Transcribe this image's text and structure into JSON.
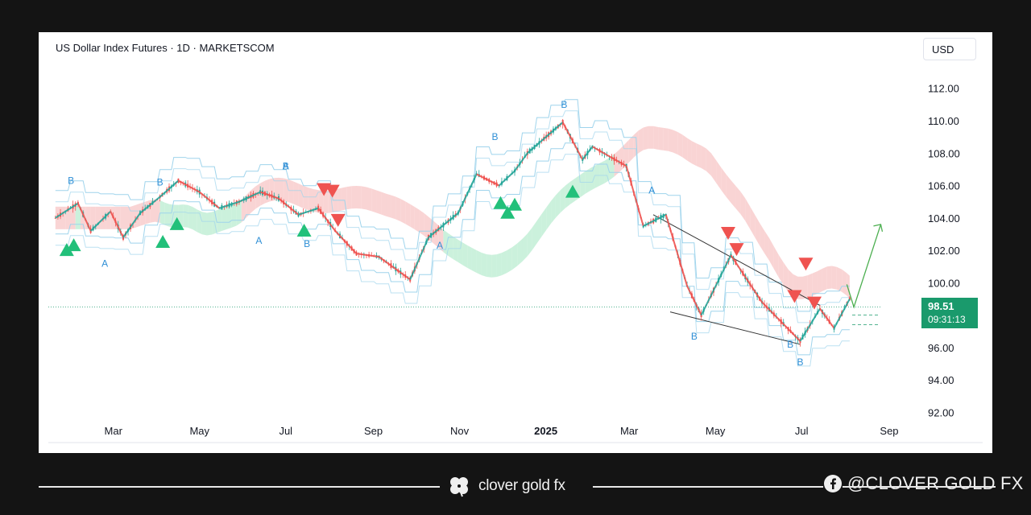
{
  "chart": {
    "title": "US Dollar Index Futures · 1D · MARKETSCOM",
    "currency": "USD",
    "price": "98.51",
    "countdown": "09:31:13"
  },
  "footer": {
    "brand": "clover gold fx",
    "social": "@CLOVER GOLD FX"
  },
  "colors": {
    "up": "#26a69a",
    "down": "#ef5350",
    "cloud_green": "#b9ecd0",
    "cloud_red": "#f7c6c6",
    "band_blue": "#9fd4ec",
    "label_blue": "#2f8fd6",
    "price_label": "#1a9a6c",
    "projection": "#4caf50"
  },
  "chart_data": {
    "type": "line",
    "title": "US Dollar Index Futures · 1D · MARKETSCOM",
    "x_ticks": [
      "Mar",
      "May",
      "Jul",
      "Sep",
      "Nov",
      "2025",
      "Mar",
      "May",
      "Jul",
      "Sep"
    ],
    "y_ticks": [
      "112.00",
      "110.00",
      "108.00",
      "106.00",
      "104.00",
      "102.00",
      "100.00",
      "96.00",
      "94.00",
      "92.00"
    ],
    "ylim": [
      91.0,
      114.0
    ],
    "last_price": 98.51,
    "series": [
      {
        "values_x": [
          "2024-01-20",
          "2024-02-05",
          "2024-02-14",
          "2024-02-28",
          "2024-03-08",
          "2024-03-20",
          "2024-04-03",
          "2024-04-16",
          "2024-05-01",
          "2024-05-15",
          "2024-05-29",
          "2024-06-13",
          "2024-06-26",
          "2024-07-10",
          "2024-07-24",
          "2024-08-05",
          "2024-08-20",
          "2024-09-05",
          "2024-09-27",
          "2024-10-10",
          "2024-10-31",
          "2024-11-13",
          "2024-11-29",
          "2024-12-10",
          "2024-12-19",
          "2025-01-13",
          "2025-01-27",
          "2025-02-03",
          "2025-02-27",
          "2025-03-11",
          "2025-03-27",
          "2025-04-11",
          "2025-04-21",
          "2025-05-12",
          "2025-06-03",
          "2025-06-30",
          "2025-07-14",
          "2025-07-24",
          "2025-08-04"
        ],
        "values_y": [
          104.0,
          104.9,
          103.2,
          104.4,
          102.8,
          104.3,
          105.3,
          106.3,
          105.6,
          104.6,
          105.0,
          105.6,
          105.2,
          104.2,
          104.6,
          103.2,
          101.8,
          101.6,
          100.2,
          102.8,
          104.3,
          106.7,
          106.0,
          106.9,
          108.0,
          109.9,
          107.6,
          108.4,
          107.2,
          103.5,
          104.2,
          99.8,
          98.0,
          101.7,
          98.8,
          96.4,
          98.4,
          97.2,
          99.0
        ]
      }
    ],
    "annotations": [
      {
        "text": "B",
        "x": "2024-01-31",
        "y": 106.1
      },
      {
        "text": "A",
        "x": "2024-02-24",
        "y": 101.0
      },
      {
        "text": "B",
        "x": "2024-04-03",
        "y": 106.0
      },
      {
        "text": "A",
        "x": "2024-06-12",
        "y": 102.4
      },
      {
        "text": "B",
        "x": "2024-07-01",
        "y": 107.0
      },
      {
        "text": "A",
        "x": "2024-07-01",
        "y": 107.0
      },
      {
        "text": "B",
        "x": "2024-07-16",
        "y": 102.2
      },
      {
        "text": "A",
        "x": "2024-10-18",
        "y": 102.1
      },
      {
        "text": "B",
        "x": "2024-11-26",
        "y": 108.8
      },
      {
        "text": "B",
        "x": "2025-01-14",
        "y": 110.8
      },
      {
        "text": "A",
        "x": "2025-03-17",
        "y": 105.5
      },
      {
        "text": "B",
        "x": "2025-04-16",
        "y": 96.5
      },
      {
        "text": "B",
        "x": "2025-06-23",
        "y": 96.0
      },
      {
        "text": "B",
        "x": "2025-06-30",
        "y": 94.9
      }
    ],
    "projection": {
      "from": 98.5,
      "to": 103.6
    }
  }
}
